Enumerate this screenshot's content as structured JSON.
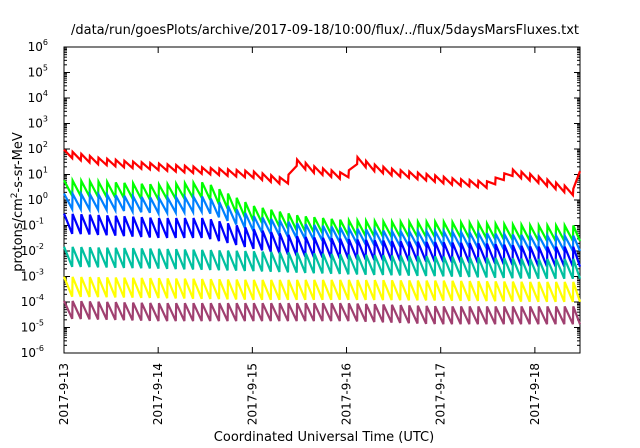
{
  "chart_data": {
    "type": "line",
    "title": "/data/run/goesPlots/archive/2017-09-18/10:00/flux/../flux/5daysMarsFluxes.txt",
    "xlabel": "Coordinated Universal Time (UTC)",
    "ylabel": "protons/cm²-s-sr-MeV",
    "ylabel_parts": {
      "pre": "protons/cm",
      "sup": "2",
      "post": "-s-sr-MeV"
    },
    "yscale": "log",
    "ylim": [
      1e-06,
      1000000.0
    ],
    "xlim": [
      "2017-09-13",
      "2017-09-18T11:30"
    ],
    "x_ticks": [
      "2017-9-13",
      "2017-9-14",
      "2017-9-15",
      "2017-9-16",
      "2017-9-17",
      "2017-9-18"
    ],
    "y_ticks": [
      {
        "base": "10",
        "exp": "-6"
      },
      {
        "base": "10",
        "exp": "-5"
      },
      {
        "base": "10",
        "exp": "-4"
      },
      {
        "base": "10",
        "exp": "-3"
      },
      {
        "base": "10",
        "exp": "-2"
      },
      {
        "base": "10",
        "exp": "-1"
      },
      {
        "base": "10",
        "exp": "0"
      },
      {
        "base": "10",
        "exp": "1"
      },
      {
        "base": "10",
        "exp": "2"
      },
      {
        "base": "10",
        "exp": "3"
      },
      {
        "base": "10",
        "exp": "4"
      },
      {
        "base": "10",
        "exp": "5"
      },
      {
        "base": "10",
        "exp": "6"
      }
    ],
    "grid": false,
    "legend": "none",
    "series": [
      {
        "color": "#ff0000",
        "x": [
          "2017-09-13T00:00",
          "2017-09-13T08:00",
          "2017-09-13T16:00",
          "2017-09-14T00:00",
          "2017-09-14T12:00",
          "2017-09-15T00:00",
          "2017-09-15T09:00",
          "2017-09-15T10:00",
          "2017-09-15T16:00",
          "2017-09-16T00:00",
          "2017-09-16T03:00",
          "2017-09-16T06:00",
          "2017-09-16T12:00",
          "2017-09-16T20:00",
          "2017-09-17T04:00",
          "2017-09-17T12:00",
          "2017-09-17T16:00",
          "2017-09-17T18:00",
          "2017-09-18T00:00",
          "2017-09-18T10:00",
          "2017-09-18T11:30"
        ],
        "y": [
          70,
          35,
          25,
          20,
          14,
          10,
          5,
          35,
          15,
          8,
          40,
          20,
          12,
          8,
          5,
          4,
          8,
          12,
          7,
          2,
          18
        ],
        "sawtooth_amplitude": 1.8,
        "sawtooth_period_hours": 2.2
      },
      {
        "color": "#00ff00",
        "x": [
          "2017-09-13T00:00",
          "2017-09-13T12:00",
          "2017-09-14T00:00",
          "2017-09-14T12:00",
          "2017-09-15T00:00",
          "2017-09-15T12:00",
          "2017-09-16T00:00",
          "2017-09-16T12:00",
          "2017-09-17T00:00",
          "2017-09-17T12:00",
          "2017-09-18T00:00",
          "2017-09-18T11:30"
        ],
        "y": [
          3,
          2.5,
          2,
          2.5,
          0.3,
          0.12,
          0.08,
          0.07,
          0.07,
          0.06,
          0.05,
          0.05
        ],
        "sawtooth_amplitude": 4,
        "sawtooth_period_hours": 2.2
      },
      {
        "color": "#0080ff",
        "x": [
          "2017-09-13T00:00",
          "2017-09-13T12:00",
          "2017-09-14T00:00",
          "2017-09-14T12:00",
          "2017-09-15T00:00",
          "2017-09-15T12:00",
          "2017-09-16T00:00",
          "2017-09-16T12:00",
          "2017-09-17T00:00",
          "2017-09-17T12:00",
          "2017-09-18T00:00",
          "2017-09-18T11:30"
        ],
        "y": [
          0.9,
          0.8,
          0.6,
          0.7,
          0.12,
          0.06,
          0.04,
          0.03,
          0.03,
          0.025,
          0.02,
          0.02
        ],
        "sawtooth_amplitude": 4,
        "sawtooth_period_hours": 2.2
      },
      {
        "color": "#0000ff",
        "x": [
          "2017-09-13T00:00",
          "2017-09-13T12:00",
          "2017-09-14T00:00",
          "2017-09-14T12:00",
          "2017-09-15T00:00",
          "2017-09-15T12:00",
          "2017-09-16T00:00",
          "2017-09-16T12:00",
          "2017-09-17T00:00",
          "2017-09-17T12:00",
          "2017-09-18T00:00",
          "2017-09-18T11:30"
        ],
        "y": [
          0.12,
          0.1,
          0.08,
          0.08,
          0.03,
          0.015,
          0.012,
          0.01,
          0.009,
          0.008,
          0.006,
          0.006
        ],
        "sawtooth_amplitude": 6,
        "sawtooth_period_hours": 2.2
      },
      {
        "color": "#00c0a0",
        "x": [
          "2017-09-13T00:00",
          "2017-09-14T00:00",
          "2017-09-15T00:00",
          "2017-09-16T00:00",
          "2017-09-17T00:00",
          "2017-09-18T00:00",
          "2017-09-18T11:30"
        ],
        "y": [
          0.006,
          0.005,
          0.004,
          0.003,
          0.0025,
          0.002,
          0.002
        ],
        "sawtooth_amplitude": 6,
        "sawtooth_period_hours": 2.2
      },
      {
        "color": "#ffff00",
        "x": [
          "2017-09-13T00:00",
          "2017-09-14T00:00",
          "2017-09-15T00:00",
          "2017-09-16T00:00",
          "2017-09-17T00:00",
          "2017-09-18T00:00",
          "2017-09-18T11:30"
        ],
        "y": [
          0.0004,
          0.00035,
          0.0003,
          0.0003,
          0.00028,
          0.00025,
          0.00025
        ],
        "sawtooth_amplitude": 6,
        "sawtooth_period_hours": 2.2
      },
      {
        "color": "#a04070",
        "x": [
          "2017-09-13T00:00",
          "2017-09-14T00:00",
          "2017-09-15T00:00",
          "2017-09-16T00:00",
          "2017-09-17T00:00",
          "2017-09-18T00:00",
          "2017-09-18T11:30"
        ],
        "y": [
          5e-05,
          4e-05,
          4e-05,
          4e-05,
          3e-05,
          3e-05,
          3e-05
        ],
        "sawtooth_amplitude": 5,
        "sawtooth_period_hours": 2.2
      }
    ]
  }
}
